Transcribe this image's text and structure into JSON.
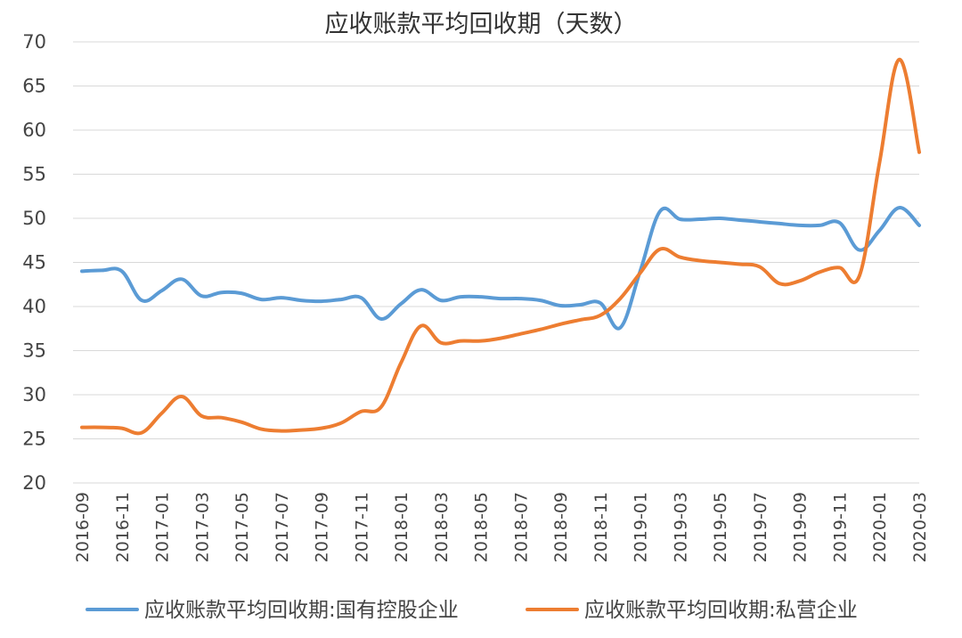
{
  "chart_data": {
    "type": "line",
    "title": "应收账款平均回收期（天数）",
    "xlabel": "",
    "ylabel": "",
    "ylim": [
      20,
      70
    ],
    "yticks": [
      20,
      25,
      30,
      35,
      40,
      45,
      50,
      55,
      60,
      65,
      70
    ],
    "grid": "horizontal",
    "legend_position": "bottom",
    "x": [
      "2016-09",
      "2016-10",
      "2016-11",
      "2016-12",
      "2017-01",
      "2017-02",
      "2017-03",
      "2017-04",
      "2017-05",
      "2017-06",
      "2017-07",
      "2017-08",
      "2017-09",
      "2017-10",
      "2017-11",
      "2017-12",
      "2018-01",
      "2018-02",
      "2018-03",
      "2018-04",
      "2018-05",
      "2018-06",
      "2018-07",
      "2018-08",
      "2018-09",
      "2018-10",
      "2018-11",
      "2018-12",
      "2019-01",
      "2019-02",
      "2019-03",
      "2019-04",
      "2019-05",
      "2019-06",
      "2019-07",
      "2019-08",
      "2019-09",
      "2019-10",
      "2019-11",
      "2019-12",
      "2020-01",
      "2020-02",
      "2020-03"
    ],
    "xticks": [
      "2016-09",
      "2016-11",
      "2017-01",
      "2017-03",
      "2017-05",
      "2017-07",
      "2017-09",
      "2017-11",
      "2018-01",
      "2018-03",
      "2018-05",
      "2018-07",
      "2018-09",
      "2018-11",
      "2019-01",
      "2019-03",
      "2019-05",
      "2019-07",
      "2019-09",
      "2019-11",
      "2020-01",
      "2020-03"
    ],
    "series": [
      {
        "name": "应收账款平均回收期:国有控股企业",
        "color": "#5b9bd5",
        "values": [
          44.0,
          44.1,
          44.0,
          40.7,
          41.8,
          43.1,
          41.2,
          41.6,
          41.5,
          40.8,
          41.0,
          40.7,
          40.6,
          40.8,
          41.0,
          38.6,
          40.3,
          41.9,
          40.7,
          41.1,
          41.1,
          40.9,
          40.9,
          40.7,
          40.1,
          40.2,
          40.4,
          37.6,
          44.0,
          50.8,
          49.9,
          49.9,
          50.0,
          49.8,
          49.6,
          49.4,
          49.2,
          49.2,
          49.5,
          46.4,
          48.6,
          51.2,
          49.2
        ]
      },
      {
        "name": "应收账款平均回收期:私营企业",
        "color": "#ed7d31",
        "values": [
          26.3,
          26.3,
          26.2,
          25.7,
          27.9,
          29.8,
          27.6,
          27.4,
          26.9,
          26.1,
          25.9,
          26.0,
          26.2,
          26.8,
          28.1,
          28.6,
          33.6,
          37.8,
          35.9,
          36.1,
          36.1,
          36.4,
          36.9,
          37.4,
          38.0,
          38.5,
          39.0,
          40.9,
          43.8,
          46.5,
          45.6,
          45.2,
          45.0,
          44.8,
          44.5,
          42.6,
          42.9,
          43.9,
          44.4,
          43.5,
          56.2,
          68.0,
          57.5
        ]
      }
    ]
  }
}
